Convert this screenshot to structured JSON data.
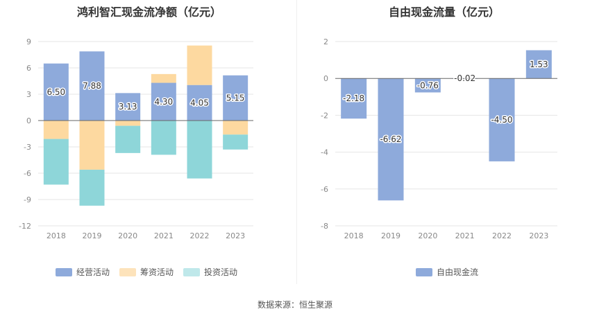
{
  "chart_data": [
    {
      "type": "bar",
      "stacked": true,
      "title": "鸿利智汇现金流净额（亿元）",
      "categories": [
        "2018",
        "2019",
        "2020",
        "2021",
        "2022",
        "2023"
      ],
      "ylim": [
        -12,
        9
      ],
      "yticks": [
        9,
        6,
        3,
        0,
        -3,
        -6,
        -9,
        -12
      ],
      "series": [
        {
          "name": "经营活动",
          "color": "#8eaadb",
          "values": [
            6.5,
            7.88,
            3.13,
            4.3,
            4.05,
            5.15
          ],
          "labels": [
            "6.50",
            "7.88",
            "3.13",
            "4.30",
            "4.05",
            "5.15"
          ]
        },
        {
          "name": "筹资活动",
          "color": "#fdd9a0",
          "values": [
            -2.1,
            -5.6,
            -0.6,
            1.0,
            4.5,
            -1.6
          ]
        },
        {
          "name": "投资活动",
          "color": "#8ed6d9",
          "values": [
            -5.2,
            -4.1,
            -3.1,
            -3.9,
            -6.6,
            -1.7
          ]
        }
      ],
      "legend": [
        {
          "name": "经营活动",
          "color": "#8eaadb"
        },
        {
          "name": "筹资活动",
          "color": "#fde3bb"
        },
        {
          "name": "投资活动",
          "color": "#bfe8ea"
        }
      ]
    },
    {
      "type": "bar",
      "title": "自由现金流量（亿元）",
      "categories": [
        "2018",
        "2019",
        "2020",
        "2021",
        "2022",
        "2023"
      ],
      "ylim": [
        -8,
        2
      ],
      "yticks": [
        2,
        0,
        -2,
        -4,
        -6,
        -8
      ],
      "series": [
        {
          "name": "自由现金流",
          "color": "#8eaadb",
          "values": [
            -2.18,
            -6.62,
            -0.76,
            -0.02,
            -4.5,
            1.53
          ],
          "labels": [
            "-2.18",
            "-6.62",
            "-0.76",
            "-0.02",
            "-4.50",
            "1.53"
          ]
        }
      ],
      "legend": [
        {
          "name": "自由现金流",
          "color": "#8eaadb"
        }
      ]
    }
  ],
  "source": "数据来源：恒生聚源"
}
